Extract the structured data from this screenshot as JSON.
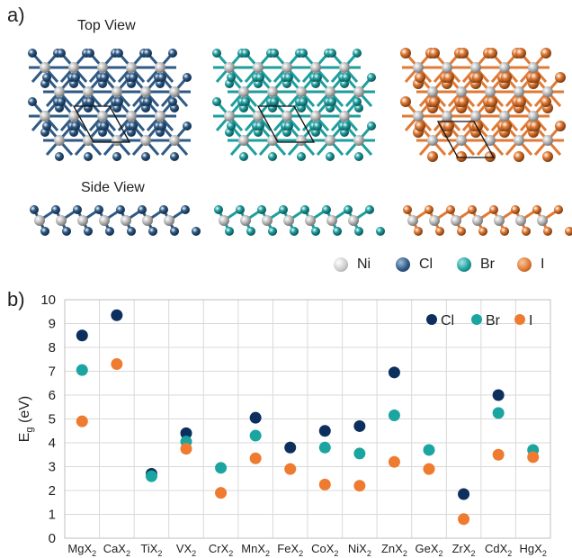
{
  "panels": {
    "a_label": "a)",
    "b_label": "b)",
    "top_view": "Top View",
    "side_view": "Side View"
  },
  "atom_legend": [
    {
      "symbol": "Ni",
      "color": "#c8c8c8"
    },
    {
      "symbol": "Cl",
      "color": "#2f5a85"
    },
    {
      "symbol": "Br",
      "color": "#1f9e9e"
    },
    {
      "symbol": "I",
      "color": "#e07a34"
    }
  ],
  "colors": {
    "Ni": "#c8c8c8",
    "Cl": "#2f5a85",
    "Br": "#1f9e9e",
    "I": "#e07a34",
    "cl_series": "#0c2f5e",
    "br_series": "#1aa5a0",
    "i_series": "#ee7b30",
    "grid": "#d9d9d9"
  },
  "chart_data": {
    "type": "scatter",
    "ylabel": "E_g (eV)",
    "ylim": [
      0,
      10
    ],
    "yticks": [
      0,
      1,
      2,
      3,
      4,
      5,
      6,
      7,
      8,
      9,
      10
    ],
    "grid": true,
    "legend_position": "top-right",
    "categories": [
      "MgX",
      "CaX",
      "TiX",
      "VX",
      "CrX",
      "MnX",
      "FeX",
      "CoX",
      "NiX",
      "ZnX",
      "GeX",
      "ZrX",
      "CdX",
      "HgX"
    ],
    "category_subscript": "2",
    "series": [
      {
        "name": "Cl",
        "values": [
          8.5,
          9.35,
          2.7,
          4.4,
          null,
          5.05,
          3.8,
          4.5,
          4.7,
          6.95,
          null,
          1.85,
          6.0,
          null
        ]
      },
      {
        "name": "Br",
        "values": [
          7.05,
          null,
          2.6,
          4.05,
          2.95,
          4.3,
          null,
          3.8,
          3.55,
          5.15,
          3.7,
          null,
          5.25,
          3.7
        ]
      },
      {
        "name": "I",
        "values": [
          4.9,
          7.3,
          null,
          3.75,
          1.9,
          3.35,
          2.9,
          2.25,
          2.2,
          3.2,
          2.9,
          0.8,
          3.5,
          3.4
        ]
      }
    ]
  }
}
